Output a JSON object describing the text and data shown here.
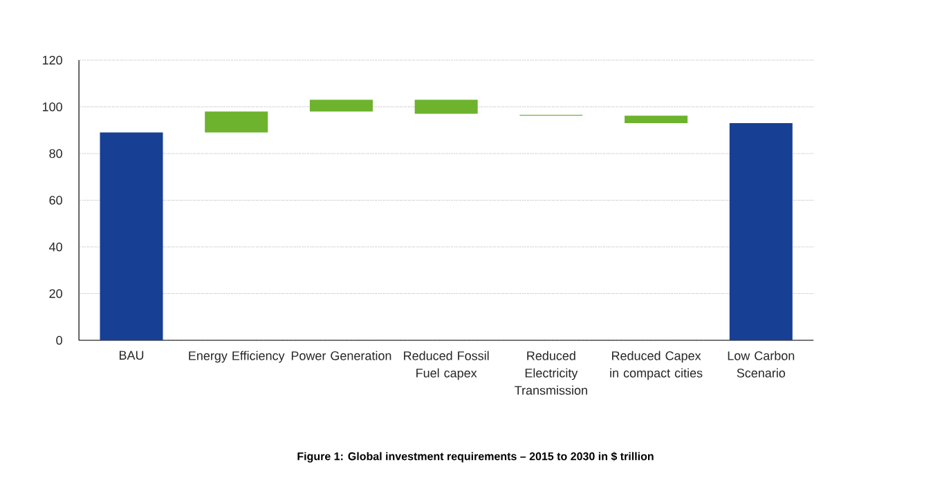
{
  "chart_data": {
    "type": "bar",
    "title": "Figure 1: Global investment requirements – 2015 to 2030 in $ trillion",
    "categories": [
      "BAU",
      "Energy Efficiency",
      "Power Generation",
      "Reduced Fossil Fuel capex",
      "Reduced Electricity Transmission",
      "Reduced Capex in compact cities",
      "Low Carbon Scenario"
    ],
    "values": [
      89,
      9,
      5,
      -6,
      -0.4,
      -3.2,
      93
    ],
    "base": [
      0,
      89,
      98,
      103,
      96.6,
      96.2,
      0
    ],
    "colors": [
      "#173f94",
      "#6db32e",
      "#6db32e",
      "#6db32e",
      "#6db32e",
      "#6db32e",
      "#173f94"
    ],
    "ylim": [
      0,
      120
    ],
    "yticks": [
      0,
      20,
      40,
      60,
      80,
      100,
      120
    ],
    "grid": "y"
  }
}
